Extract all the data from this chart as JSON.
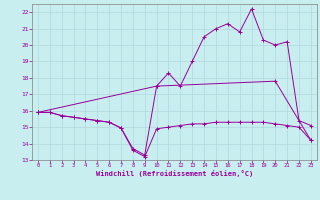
{
  "title": "",
  "xlabel": "Windchill (Refroidissement éolien,°C)",
  "ylabel": "",
  "xlim": [
    -0.5,
    23.5
  ],
  "ylim": [
    13,
    22.5
  ],
  "xticks": [
    0,
    1,
    2,
    3,
    4,
    5,
    6,
    7,
    8,
    9,
    10,
    11,
    12,
    13,
    14,
    15,
    16,
    17,
    18,
    19,
    20,
    21,
    22,
    23
  ],
  "yticks": [
    13,
    14,
    15,
    16,
    17,
    18,
    19,
    20,
    21,
    22
  ],
  "background_color": "#c8eef0",
  "grid_color": "#b0d8dc",
  "line_color": "#990099",
  "line1_x": [
    0,
    1,
    2,
    3,
    4,
    5,
    6,
    7,
    8,
    9,
    10,
    11,
    12,
    13,
    14,
    15,
    16,
    17,
    18,
    19,
    20,
    21,
    22,
    23
  ],
  "line1_y": [
    15.9,
    15.9,
    15.7,
    15.6,
    15.5,
    15.4,
    15.3,
    14.95,
    13.6,
    13.2,
    14.9,
    15.0,
    15.1,
    15.2,
    15.2,
    15.3,
    15.3,
    15.3,
    15.3,
    15.3,
    15.2,
    15.1,
    15.0,
    14.2
  ],
  "line2_x": [
    0,
    1,
    2,
    3,
    4,
    5,
    6,
    7,
    8,
    9,
    10,
    11,
    12,
    13,
    14,
    15,
    16,
    17,
    18,
    19,
    20,
    21,
    22,
    23
  ],
  "line2_y": [
    15.9,
    15.9,
    15.7,
    15.6,
    15.5,
    15.4,
    15.3,
    14.95,
    13.7,
    13.3,
    17.5,
    18.3,
    17.5,
    19.0,
    20.5,
    21.0,
    21.3,
    20.8,
    22.2,
    20.3,
    20.0,
    20.2,
    15.4,
    15.1
  ],
  "line3_x": [
    0,
    10,
    20,
    23
  ],
  "line3_y": [
    15.9,
    17.5,
    17.8,
    14.2
  ]
}
